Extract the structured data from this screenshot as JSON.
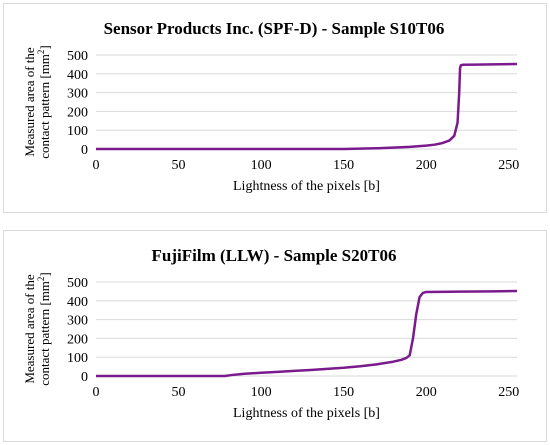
{
  "chart_data": [
    {
      "type": "line",
      "title": "Sensor Products Inc. (SPF-D) - Sample S10T06",
      "xlabel": "Lightness of the pixels [b]",
      "ylabel_line1": "Measured area of the",
      "ylabel_line2_prefix": "contact pattern [mm",
      "ylabel_sup": "2",
      "ylabel_line2_suffix": "]",
      "xlim": [
        0,
        255
      ],
      "ylim": [
        0,
        500
      ],
      "xticks": [
        0,
        50,
        100,
        150,
        200,
        250
      ],
      "yticks": [
        0,
        100,
        200,
        300,
        400,
        500
      ],
      "grid": "horizontal",
      "color": "#7b1a8c",
      "x": [
        0,
        100,
        150,
        160,
        170,
        180,
        190,
        200,
        205,
        210,
        214,
        217,
        219,
        220,
        220.5,
        221,
        222,
        230,
        240,
        255
      ],
      "y": [
        0,
        0,
        0,
        2,
        4,
        7,
        11,
        18,
        23,
        32,
        45,
        70,
        140,
        300,
        430,
        445,
        448,
        449,
        450,
        452
      ]
    },
    {
      "type": "line",
      "title": "FujiFilm (LLW) - Sample S20T06",
      "xlabel": "Lightness of the pixels [b]",
      "ylabel_line1": "Measured area of the",
      "ylabel_line2_prefix": "contact pattern [mm",
      "ylabel_sup": "2",
      "ylabel_line2_suffix": "]",
      "xlim": [
        0,
        255
      ],
      "ylim": [
        0,
        500
      ],
      "xticks": [
        0,
        50,
        100,
        150,
        200,
        250
      ],
      "yticks": [
        0,
        100,
        200,
        300,
        400,
        500
      ],
      "grid": "horizontal",
      "color": "#7b1a8c",
      "x": [
        0,
        78,
        82,
        90,
        100,
        110,
        120,
        130,
        140,
        150,
        160,
        170,
        180,
        185,
        188,
        190,
        192,
        194,
        196,
        198,
        200,
        220,
        240,
        255
      ],
      "y": [
        0,
        0,
        5,
        12,
        17,
        22,
        27,
        32,
        38,
        44,
        52,
        62,
        76,
        86,
        96,
        110,
        200,
        330,
        420,
        442,
        447,
        449,
        450,
        452
      ]
    }
  ]
}
